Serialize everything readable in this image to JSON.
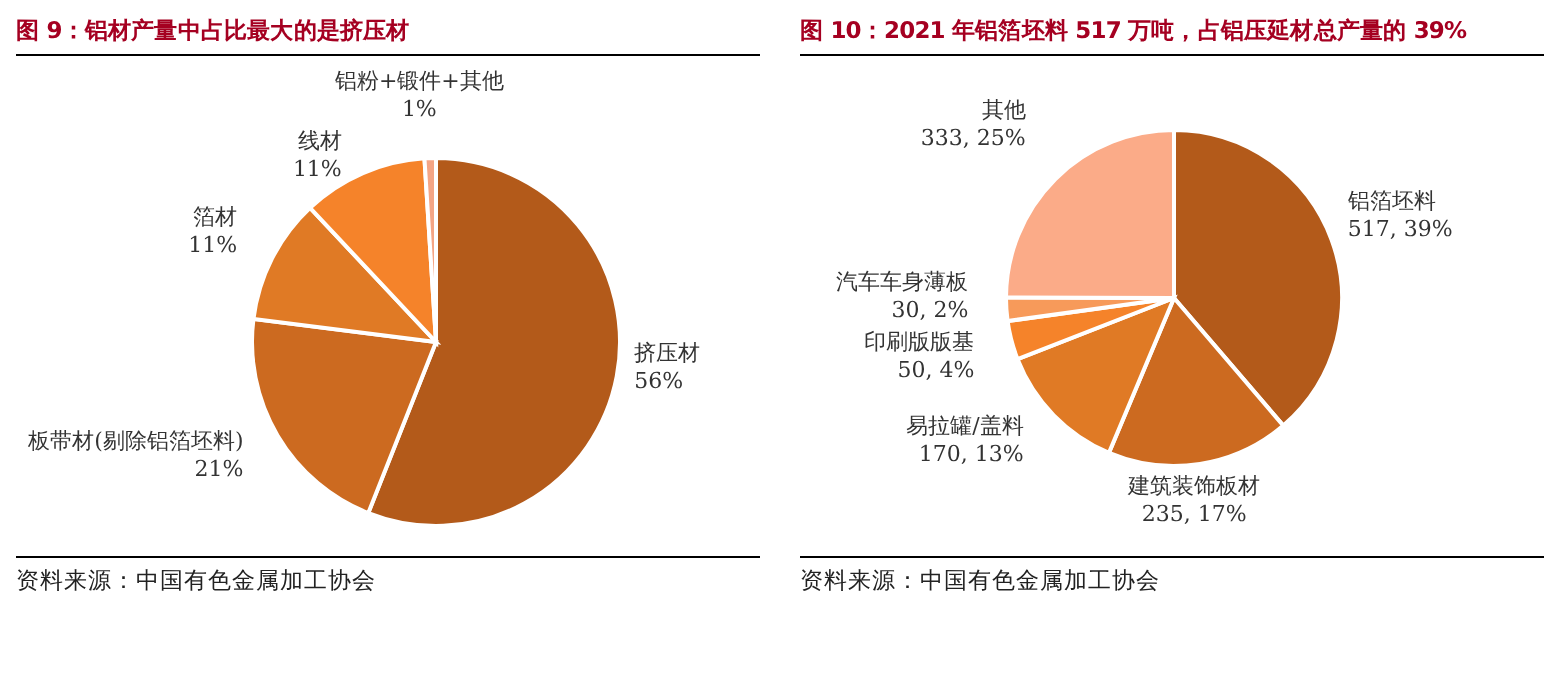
{
  "chart_data": [
    {
      "type": "pie",
      "title": "图 9：铝材产量中占比最大的是挤压材",
      "categories": [
        "挤压材",
        "板带材(剔除铝箔坯料)",
        "箔材",
        "线材",
        "铝粉+锻件+其他"
      ],
      "values": [
        56,
        21,
        11,
        11,
        1
      ],
      "value_labels": [
        "56%",
        "21%",
        "11%",
        "11%",
        "1%"
      ],
      "colors": [
        "#b35a1a",
        "#cc6a20",
        "#e07a25",
        "#f5832a",
        "#f4a585"
      ],
      "annotations": [
        "资料来源：中国有色金属加工协会"
      ]
    },
    {
      "type": "pie",
      "title": "图 10：2021 年铝箔坯料 517 万吨，占铝压延材总产量的 39%",
      "categories": [
        "铝箔坯料",
        "建筑装饰板材",
        "易拉罐/盖料",
        "印刷版版基",
        "汽车车身薄板",
        "其他"
      ],
      "values": [
        517,
        235,
        170,
        50,
        30,
        333
      ],
      "value_labels": [
        "517, 39%",
        "235, 17%",
        "170, 13%",
        "50, 4%",
        "30, 2%",
        "333, 25%"
      ],
      "colors": [
        "#b35a1a",
        "#cc6a20",
        "#e07a25",
        "#f5832a",
        "#f79a5a",
        "#fbab88"
      ],
      "annotations": [
        "资料来源：中国有色金属加工协会"
      ]
    }
  ]
}
